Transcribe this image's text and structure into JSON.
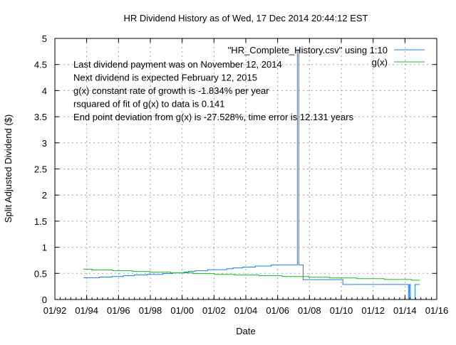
{
  "chart_data": {
    "type": "line",
    "title": "HR Dividend History as of Wed, 17 Dec 2014 20:44:12 EST",
    "xlabel": "Date",
    "ylabel": "Split Adjusted Dividend ($)",
    "xlim": [
      1992,
      2016
    ],
    "ylim": [
      0,
      5
    ],
    "grid": true,
    "legend_position": "top-right",
    "x_ticks": [
      {
        "value": 1992,
        "label": "01/92"
      },
      {
        "value": 1994,
        "label": "01/94"
      },
      {
        "value": 1996,
        "label": "01/96"
      },
      {
        "value": 1998,
        "label": "01/98"
      },
      {
        "value": 2000,
        "label": "01/00"
      },
      {
        "value": 2002,
        "label": "01/02"
      },
      {
        "value": 2004,
        "label": "01/04"
      },
      {
        "value": 2006,
        "label": "01/06"
      },
      {
        "value": 2008,
        "label": "01/08"
      },
      {
        "value": 2010,
        "label": "01/10"
      },
      {
        "value": 2012,
        "label": "01/12"
      },
      {
        "value": 2014,
        "label": "01/14"
      },
      {
        "value": 2016,
        "label": "01/16"
      }
    ],
    "y_ticks": [
      {
        "value": 0,
        "label": "0"
      },
      {
        "value": 0.5,
        "label": "0.5"
      },
      {
        "value": 1,
        "label": "1"
      },
      {
        "value": 1.5,
        "label": "1.5"
      },
      {
        "value": 2,
        "label": "2"
      },
      {
        "value": 2.5,
        "label": "2.5"
      },
      {
        "value": 3,
        "label": "3"
      },
      {
        "value": 3.5,
        "label": "3.5"
      },
      {
        "value": 4,
        "label": "4"
      },
      {
        "value": 4.5,
        "label": "4.5"
      },
      {
        "value": 5,
        "label": "5"
      }
    ],
    "series": [
      {
        "name": "\"HR_Complete_History.csv\" using 1:10",
        "color": "#1a7fe8",
        "step": true,
        "end_x": 2014.94,
        "points": [
          [
            1993.8,
            0.417
          ],
          [
            1994.8,
            0.43
          ],
          [
            1995.6,
            0.44
          ],
          [
            1996.3,
            0.455
          ],
          [
            1997.0,
            0.47
          ],
          [
            1997.8,
            0.48
          ],
          [
            1998.8,
            0.497
          ],
          [
            1999.4,
            0.51
          ],
          [
            2000.1,
            0.525
          ],
          [
            2000.4,
            0.54
          ],
          [
            2000.8,
            0.55
          ],
          [
            2001.6,
            0.57
          ],
          [
            2002.8,
            0.59
          ],
          [
            2003.2,
            0.605
          ],
          [
            2003.8,
            0.62
          ],
          [
            2004.6,
            0.64
          ],
          [
            2005.6,
            0.662
          ],
          [
            2007.24,
            4.78
          ],
          [
            2007.33,
            0.662
          ],
          [
            2007.6,
            0.38
          ],
          [
            2010.1,
            0.287
          ],
          [
            2014.22,
            0
          ],
          [
            2014.28,
            0.287
          ],
          [
            2014.34,
            0
          ],
          [
            2014.64,
            0.287
          ]
        ]
      },
      {
        "name": "g(x)",
        "color": "#1fb81f",
        "step": true,
        "end_x": 2014.94,
        "points": [
          [
            1993.8,
            0.58
          ],
          [
            1994.33,
            0.565
          ],
          [
            1995.64,
            0.55
          ],
          [
            1996.88,
            0.537
          ],
          [
            1997.96,
            0.523
          ],
          [
            1999.27,
            0.509
          ],
          [
            2000.72,
            0.495
          ],
          [
            2002.03,
            0.481
          ],
          [
            2003.28,
            0.468
          ],
          [
            2004.82,
            0.454
          ],
          [
            2006.28,
            0.44
          ],
          [
            2007.96,
            0.426
          ],
          [
            2009.27,
            0.412
          ],
          [
            2010.99,
            0.398
          ],
          [
            2012.7,
            0.384
          ],
          [
            2014.4,
            0.37
          ]
        ]
      }
    ],
    "annotations": [
      "Last dividend payment was on November 12, 2014",
      "Next dividend is expected February 12, 2015",
      "g(x) constant rate of growth is -1.834% per year",
      "rsquared of fit of g(x) to data is  0.141",
      "End point deviation from g(x) is  -27.528%, time error is   12.131 years"
    ]
  }
}
